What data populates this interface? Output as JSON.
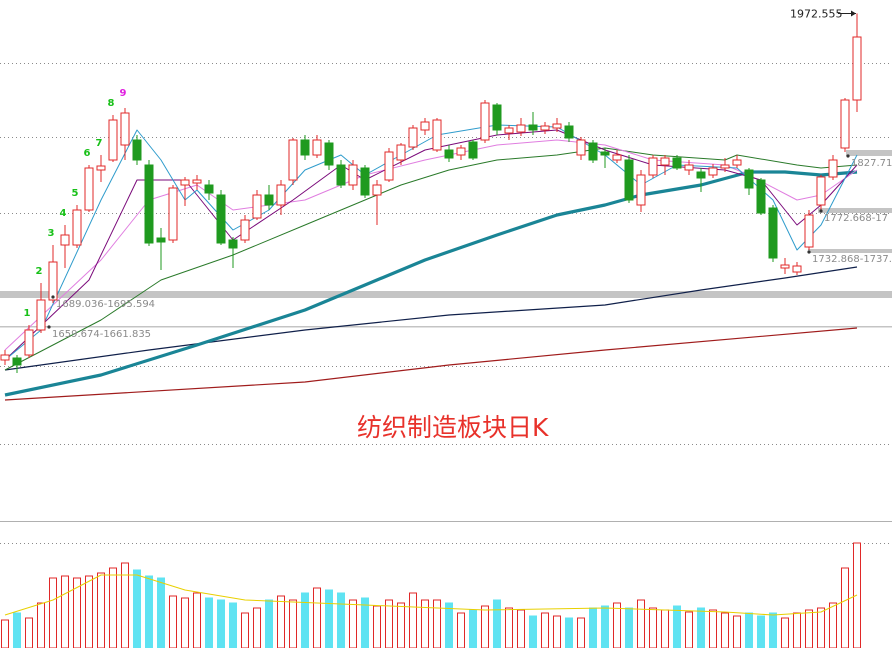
{
  "chart_data": {
    "type": "candlestick",
    "title": "纺织制造板块日K",
    "xlim": [
      -0.4167,
      73.9167
    ],
    "ylim": [
      1466,
      1986
    ],
    "up_color": "#e02828",
    "down_color": "#1f9a1f",
    "candles": {
      "open": [
        1626,
        1628,
        1631,
        1656,
        1686,
        1741,
        1741,
        1776,
        1816,
        1826,
        1841,
        1846,
        1821,
        1748,
        1746,
        1801,
        1803,
        1801,
        1791,
        1746,
        1746,
        1768,
        1791,
        1781,
        1806,
        1846,
        1831,
        1843,
        1821,
        1801,
        1818,
        1791,
        1806,
        1826,
        1839,
        1856,
        1836,
        1836,
        1831,
        1844,
        1846,
        1881,
        1853,
        1854,
        1861,
        1856,
        1858,
        1860,
        1831,
        1843,
        1834,
        1826,
        1826,
        1781,
        1811,
        1821,
        1828,
        1816,
        1814,
        1811,
        1818,
        1821,
        1816,
        1806,
        1778,
        1718,
        1714,
        1739,
        1781,
        1809,
        1838,
        1886
      ],
      "high": [
        1636,
        1631,
        1661,
        1703,
        1741,
        1761,
        1781,
        1821,
        1831,
        1871,
        1878,
        1851,
        1826,
        1758,
        1801,
        1809,
        1811,
        1806,
        1796,
        1749,
        1771,
        1796,
        1801,
        1806,
        1848,
        1851,
        1851,
        1846,
        1826,
        1826,
        1821,
        1806,
        1838,
        1843,
        1861,
        1868,
        1868,
        1841,
        1841,
        1846,
        1886,
        1883,
        1861,
        1868,
        1874,
        1864,
        1868,
        1864,
        1849,
        1846,
        1838,
        1836,
        1831,
        1816,
        1831,
        1831,
        1831,
        1826,
        1818,
        1822,
        1828,
        1831,
        1818,
        1808,
        1781,
        1728,
        1724,
        1776,
        1811,
        1831,
        1888,
        1972.555
      ],
      "low": [
        1621,
        1613,
        1628,
        1653,
        1683,
        1718,
        1738,
        1774,
        1804,
        1824,
        1826,
        1821,
        1740,
        1716,
        1743,
        1780,
        1796,
        1786,
        1741,
        1718,
        1743,
        1766,
        1776,
        1771,
        1801,
        1826,
        1828,
        1816,
        1798,
        1796,
        1788,
        1761,
        1804,
        1821,
        1836,
        1851,
        1834,
        1824,
        1826,
        1826,
        1843,
        1851,
        1846,
        1850,
        1851,
        1852,
        1854,
        1844,
        1826,
        1823,
        1818,
        1823,
        1783,
        1774,
        1808,
        1811,
        1816,
        1811,
        1794,
        1808,
        1814,
        1818,
        1791,
        1771,
        1724,
        1712,
        1711,
        1736,
        1774,
        1806,
        1834,
        1874
      ],
      "close": [
        1631,
        1621,
        1656,
        1686,
        1724,
        1751,
        1776,
        1818,
        1820,
        1866,
        1873,
        1826,
        1743,
        1744,
        1798,
        1806,
        1806,
        1793,
        1743,
        1738,
        1766,
        1791,
        1781,
        1801,
        1846,
        1831,
        1846,
        1821,
        1801,
        1821,
        1791,
        1801,
        1834,
        1841,
        1858,
        1864,
        1866,
        1828,
        1838,
        1828,
        1883,
        1856,
        1858,
        1861,
        1856,
        1860,
        1862,
        1848,
        1846,
        1826,
        1831,
        1831,
        1786,
        1811,
        1828,
        1828,
        1818,
        1821,
        1808,
        1818,
        1821,
        1826,
        1798,
        1773,
        1728,
        1721,
        1720,
        1771,
        1809,
        1826,
        1886,
        1949
      ]
    },
    "series": [
      {
        "color": "#a01c1c",
        "width": 1.2,
        "x": [
          0,
          25,
          37,
          50,
          71
        ],
        "values": [
          1586,
          1604,
          1621,
          1636,
          1658
        ]
      },
      {
        "color": "#10204a",
        "width": 1.2,
        "x": [
          0,
          12,
          25,
          37,
          50,
          58,
          65,
          71
        ],
        "values": [
          1616,
          1636,
          1656,
          1671,
          1681,
          1696,
          1708,
          1719
        ]
      },
      {
        "color": "#1a8596",
        "width": 3.2,
        "x": [
          0,
          8,
          16,
          25,
          30,
          35,
          41,
          46,
          50,
          53,
          58,
          62,
          65,
          68,
          71
        ],
        "values": [
          1591,
          1611,
          1641,
          1676,
          1701,
          1726,
          1751,
          1771,
          1781,
          1791,
          1801,
          1814,
          1814,
          1811,
          1814
        ]
      },
      {
        "color": "#2a7a2a",
        "width": 1,
        "x": [
          0,
          8,
          13,
          19,
          25,
          30,
          33,
          37,
          41,
          46,
          50,
          54,
          60,
          61,
          66,
          68,
          71
        ],
        "values": [
          1616,
          1666,
          1706,
          1731,
          1761,
          1786,
          1801,
          1816,
          1826,
          1831,
          1838,
          1831,
          1826,
          1831,
          1821,
          1818,
          1821
        ]
      },
      {
        "color": "#e07ee0",
        "width": 1,
        "x": [
          0,
          8,
          12,
          16,
          19,
          25,
          30,
          35,
          41,
          46,
          50,
          54,
          60,
          62,
          66,
          68,
          71
        ],
        "values": [
          1636,
          1726,
          1786,
          1801,
          1776,
          1786,
          1811,
          1826,
          1841,
          1846,
          1841,
          1826,
          1821,
          1811,
          1786,
          1791,
          1816
        ]
      },
      {
        "color": "#7a0a7a",
        "width": 1,
        "x": [
          0,
          7,
          11,
          15,
          16,
          19,
          24,
          28,
          30,
          35,
          41,
          46,
          50,
          54,
          60,
          63,
          66,
          68,
          71
        ],
        "values": [
          1626,
          1706,
          1806,
          1806,
          1791,
          1746,
          1786,
          1821,
          1806,
          1836,
          1851,
          1856,
          1836,
          1821,
          1816,
          1806,
          1761,
          1781,
          1821
        ]
      },
      {
        "color": "#2f9ccc",
        "width": 1,
        "x": [
          0,
          3,
          8,
          11,
          13,
          15,
          16,
          19,
          22,
          25,
          28,
          30,
          33,
          36,
          41,
          46,
          50,
          53,
          56,
          61,
          64,
          66,
          68,
          71
        ],
        "values": [
          1626,
          1656,
          1786,
          1856,
          1826,
          1786,
          1796,
          1756,
          1776,
          1816,
          1831,
          1811,
          1831,
          1851,
          1861,
          1859,
          1831,
          1801,
          1821,
          1818,
          1786,
          1736,
          1761,
          1831
        ]
      }
    ],
    "volume": {
      "ylim": [
        0,
        127
      ],
      "down_color": "#5fe3f2",
      "values": [
        28,
        35,
        30,
        45,
        70,
        72,
        70,
        72,
        75,
        80,
        85,
        78,
        72,
        70,
        52,
        50,
        55,
        50,
        48,
        45,
        35,
        40,
        48,
        52,
        48,
        55,
        60,
        58,
        55,
        48,
        50,
        42,
        48,
        45,
        55,
        48,
        48,
        45,
        35,
        38,
        42,
        48,
        40,
        38,
        32,
        35,
        32,
        30,
        30,
        40,
        42,
        45,
        40,
        48,
        40,
        38,
        42,
        36,
        40,
        38,
        35,
        32,
        35,
        32,
        35,
        30,
        35,
        38,
        40,
        45,
        80,
        105
      ],
      "average": {
        "color": "#e8d000",
        "x": [
          0,
          4,
          8,
          11,
          15,
          20,
          30,
          40,
          50,
          60,
          64,
          68,
          71
        ],
        "values": [
          33,
          48,
          73,
          73,
          58,
          48,
          43,
          38,
          40,
          36,
          33,
          36,
          53
        ]
      }
    },
    "td_labels": [
      "1",
      "2",
      "3",
      "4",
      "5",
      "6",
      "7",
      "8",
      "9"
    ],
    "level_labels": [
      "1689.036-1695.594",
      "1659.674-1661.835",
      "1732.868-1737.",
      "1772.668-17",
      "1827.712"
    ]
  }
}
